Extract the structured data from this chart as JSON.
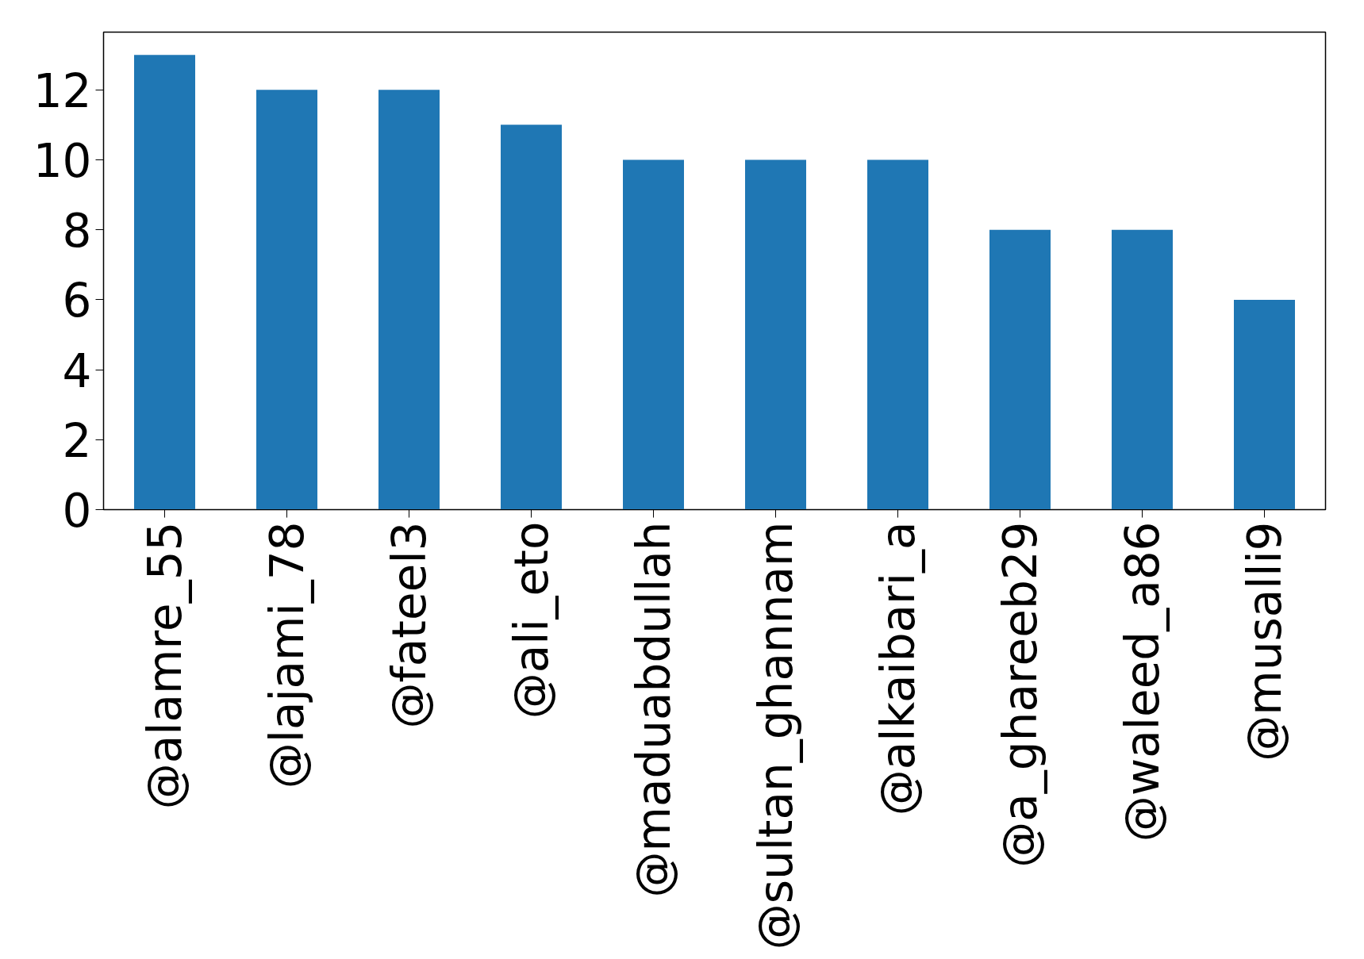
{
  "chart_data": {
    "type": "bar",
    "categories": [
      "@alamre_55",
      "@lajami_78",
      "@fateel3",
      "@ali_eto",
      "@maduabdullah",
      "@sultan_ghannam",
      "@alkaibari_a",
      "@a_ghareeb29",
      "@waleed_a86",
      "@musalli9"
    ],
    "values": [
      13,
      12,
      12,
      11,
      10,
      10,
      10,
      8,
      8,
      6
    ],
    "color": "#1f77b4",
    "ylim": [
      0,
      13.65
    ],
    "yticks": [
      0,
      2,
      4,
      6,
      8,
      10,
      12
    ],
    "grid": false
  }
}
